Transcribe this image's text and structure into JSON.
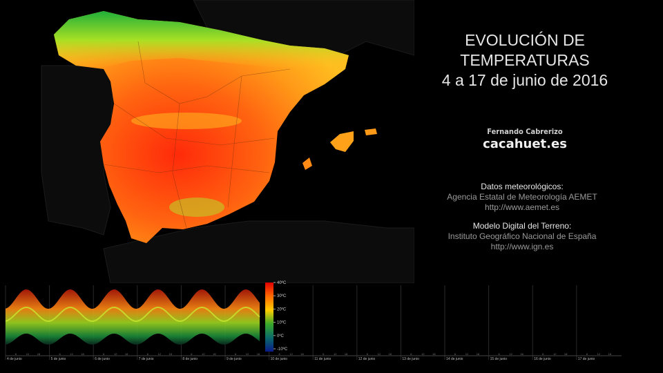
{
  "title": {
    "line1": "EVOLUCIÓN DE",
    "line2": "TEMPERATURAS",
    "line3": "4 a 17 de junio de 2016"
  },
  "author": {
    "name": "Fernando Cabrerizo",
    "site": "cacahuet.es"
  },
  "credits": [
    {
      "heading": "Datos meteorológicos:",
      "source": "Agencia Estatal de Meteorología AEMET",
      "url": "http://www.aemet.es"
    },
    {
      "heading": "Modelo Digital del Terreno:",
      "source": "Instituto Geográfico Nacional de España",
      "url": "http://www.ign.es"
    }
  ],
  "colors": {
    "background": "#000000",
    "land_dark": "#111111",
    "hot": "#ff2a0a",
    "warm": "#ff7a14",
    "mild": "#ffb21e",
    "cool": "#9adf22",
    "cold": "#1fae3a"
  },
  "legend": {
    "ticks": [
      "40ºC",
      "30ºC",
      "20ºC",
      "10ºC",
      "0ºC",
      "-10ºC"
    ],
    "values": [
      40,
      30,
      20,
      10,
      0,
      -10
    ]
  },
  "timeline": {
    "days": [
      "4 de junio",
      "5 de junio",
      "6 de junio",
      "7 de junio",
      "8 de junio",
      "9 de junio",
      "10 de junio",
      "11 de junio",
      "12 de junio",
      "13 de junio",
      "14 de junio",
      "15 de junio",
      "16 de junio",
      "17 de junio"
    ],
    "hour_ticks": [
      "6",
      "12",
      "18"
    ],
    "days_shown": 5.8
  }
}
